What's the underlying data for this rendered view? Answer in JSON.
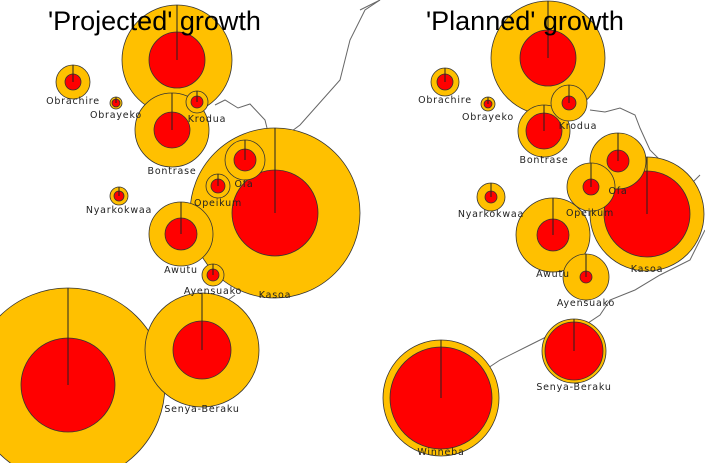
{
  "panels": [
    {
      "title": "'Projected' growth",
      "places": [
        {
          "name": ""
        },
        {
          "name": "Obrachire"
        },
        {
          "name": "Obrayeko"
        },
        {
          "name": "Krodua"
        },
        {
          "name": "Bontrase"
        },
        {
          "name": "Ofa"
        },
        {
          "name": "Opeikum"
        },
        {
          "name": "Nyarkokwaa"
        },
        {
          "name": "Awutu"
        },
        {
          "name": "Ayensuako"
        },
        {
          "name": "Kasoa"
        },
        {
          "name": "Senya-Beraku"
        },
        {
          "name": ""
        }
      ]
    },
    {
      "title": "'Planned' growth",
      "places": [
        {
          "name": ""
        },
        {
          "name": "Obrachire"
        },
        {
          "name": "Obrayeko"
        },
        {
          "name": "Krodua"
        },
        {
          "name": "Bontrase"
        },
        {
          "name": "Ofa"
        },
        {
          "name": "Opeikum"
        },
        {
          "name": "Nyarkokwaa"
        },
        {
          "name": "Awutu"
        },
        {
          "name": "Kasoa"
        },
        {
          "name": "Ayensuako"
        },
        {
          "name": "Senya-Beraku"
        },
        {
          "name": "Winneba"
        }
      ]
    }
  ],
  "colors": {
    "outer": "#FFC000",
    "inner": "#FF0000",
    "coast": "#666666"
  }
}
